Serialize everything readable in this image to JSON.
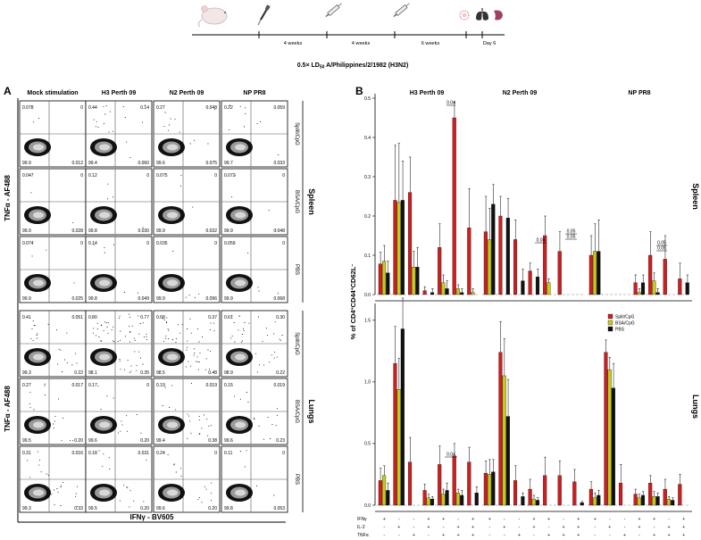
{
  "timeline": {
    "intervals": [
      "4 weeks",
      "4 weeks",
      "6 weeks"
    ],
    "end_label": "Day 6",
    "challenge_label": "0.5× LD50 A/Philippines/2/1982 (H3N2)",
    "challenge_parts": {
      "pre": "0.5× LD",
      "sub": "50",
      "post": " A/Philippines/2/1982 (H3N2)"
    }
  },
  "panel_a": {
    "letter": "A",
    "columns": [
      "Mock stimulation",
      "H3 Perth 09",
      "N2 Perth 09",
      "NP PR8"
    ],
    "tissues": [
      "Spleen",
      "Lungs"
    ],
    "groups": [
      "Split/CpG",
      "BSA/CpG",
      "PBS"
    ],
    "y_axis_label": "TNFα - AF488",
    "x_axis_label": "IFNγ - BV605",
    "quadrants": [
      [
        [
          "0.078",
          "0",
          "99.9",
          "0.012"
        ],
        [
          "0.44",
          "0.14",
          "99.4",
          "0.060"
        ],
        [
          "0.27",
          "0.048",
          "99.6",
          "0.075"
        ],
        [
          "0.22",
          "0.059",
          "99.7",
          "0.033"
        ]
      ],
      [
        [
          "0.047",
          "0",
          "99.9",
          "0.028"
        ],
        [
          "0.12",
          "0",
          "99.8",
          "0.030"
        ],
        [
          "0.075",
          "0",
          "99.9",
          "0.032"
        ],
        [
          "0.072",
          "0",
          "99.9",
          "0.048"
        ]
      ],
      [
        [
          "0.074",
          "0",
          "99.9",
          "0.025"
        ],
        [
          "0.14",
          "0",
          "99.8",
          "0.049"
        ],
        [
          "0.035",
          "0",
          "99.9",
          "0.096"
        ],
        [
          "0.059",
          "0",
          "99.9",
          "0.068"
        ]
      ],
      [
        [
          "0.41",
          "0.051",
          "99.3",
          "0.22"
        ],
        [
          "0.80",
          "0.77",
          "98.1",
          "0.35"
        ],
        [
          "0.68",
          "0.37",
          "98.5",
          "0.48"
        ],
        [
          "0.61",
          "0.30",
          "98.9",
          "0.22"
        ]
      ],
      [
        [
          "0.27",
          "0.017",
          "99.5",
          "0.20"
        ],
        [
          "0.17",
          "0",
          "99.6",
          "0.20"
        ],
        [
          "0.19",
          "0.019",
          "99.4",
          "0.38"
        ],
        [
          "0.15",
          "0.019",
          "99.6",
          "0.23"
        ]
      ],
      [
        [
          "0.31",
          "0.016",
          "99.3",
          "0.33"
        ],
        [
          "0.18",
          "0.031",
          "99.5",
          "0.20"
        ],
        [
          "0.24",
          "0",
          "99.6",
          "0.20"
        ],
        [
          "0.11",
          "0",
          "99.8",
          "0.053"
        ]
      ]
    ]
  },
  "panel_b": {
    "letter": "B",
    "y_axis_label": "% of CD4+CD44+CD62L−",
    "y_axis_parts": {
      "pre": "% of CD4",
      "s1": "+",
      "mid1": "CD44",
      "s2": "+",
      "mid2": "CD62L",
      "s3": "−"
    },
    "marker_labels": [
      "IFNγ",
      "IL-2",
      "TNFα"
    ],
    "marker_pattern": [
      [
        "+",
        "-",
        "-",
        "+",
        "+",
        "-",
        "+"
      ],
      [
        "-",
        "+",
        "-",
        "+",
        "-",
        "+",
        "+"
      ],
      [
        "-",
        "-",
        "+",
        "-",
        "+",
        "+",
        "+"
      ]
    ],
    "legend": [
      {
        "name": "Split/CpG",
        "color": "#cc1f1f"
      },
      {
        "name": "BSA/CpG",
        "color": "#c8c81e"
      },
      {
        "name": "PBS",
        "color": "#111111"
      }
    ],
    "stat_labels": {
      "spleen_h3": "0.04",
      "spleen_n2": "0.04",
      "spleen_n2_b": "0.05",
      "spleen_n2_c": "0.05",
      "spleen_np_a": "0.05",
      "spleen_np_b": "0.05",
      "lungs_h3": "0.04"
    }
  },
  "chart_data": [
    {
      "type": "bar",
      "tissue": "Spleen",
      "antigens": [
        "H3 Perth 09",
        "N2 Perth 09",
        "NP PR8"
      ],
      "categories": [
        "IFNγ+",
        "IL-2+",
        "TNFα+",
        "IFNγ+IL-2+",
        "IFNγ+TNFα+",
        "IL-2+TNFα+",
        "IFNγ+IL-2+TNFα+"
      ],
      "ylim": [
        0,
        0.5
      ],
      "yticks": [
        "0.0",
        "0.1",
        "0.2",
        "0.3",
        "0.4",
        "0.5"
      ],
      "series": [
        {
          "name": "Split/CpG",
          "values": [
            [
              0.078,
              0.24,
              0.26,
              0.01,
              0.12,
              0.45,
              0.17
            ],
            [
              0.16,
              0.2,
              0.14,
              0.06,
              0.15,
              0.11,
              0
            ],
            [
              0.1,
              0,
              0,
              0.03,
              0.1,
              0.09,
              0.04
            ]
          ]
        },
        {
          "name": "BSA/CpG",
          "values": [
            [
              0.085,
              0.235,
              0.07,
              0,
              0.03,
              0.015,
              0.005
            ],
            [
              0.14,
              0,
              0,
              0,
              0.03,
              0,
              0
            ],
            [
              0.11,
              0,
              0,
              0.005,
              0.035,
              0,
              0
            ]
          ]
        },
        {
          "name": "PBS",
          "values": [
            [
              0.055,
              0.24,
              0.07,
              0.005,
              0.015,
              0.005,
              0
            ],
            [
              0.23,
              0.195,
              0.035,
              0.045,
              0,
              0,
              0
            ],
            [
              0.11,
              0,
              0,
              0.03,
              0.005,
              0,
              0.03
            ]
          ]
        }
      ],
      "errors": [
        [
          [
            0.03,
            0.14,
            0.09,
            0.01,
            0.06,
            0.04,
            0.1
          ],
          [
            0.09,
            0.05,
            0.05,
            0.02,
            0.05,
            0.05,
            0
          ],
          [
            0.05,
            0,
            0,
            0.02,
            0.06,
            0.06,
            0.04
          ]
        ],
        [
          [
            0.04,
            0.15,
            0.04,
            0,
            0.02,
            0.01,
            0.01
          ],
          [
            0.08,
            0,
            0,
            0,
            0.01,
            0,
            0
          ],
          [
            0.07,
            0,
            0,
            0.01,
            0.02,
            0,
            0
          ]
        ],
        [
          [
            0.03,
            0.1,
            0.05,
            0.01,
            0.02,
            0.01,
            0
          ],
          [
            0.05,
            0.05,
            0.03,
            0.02,
            0,
            0,
            0
          ],
          [
            0.08,
            0,
            0,
            0.02,
            0.01,
            0,
            0.02
          ]
        ]
      ]
    },
    {
      "type": "bar",
      "tissue": "Lungs",
      "antigens": [
        "H3 Perth 09",
        "N2 Perth 09",
        "NP PR8"
      ],
      "categories": [
        "IFNγ+",
        "IL-2+",
        "TNFα+",
        "IFNγ+IL-2+",
        "IFNγ+TNFα+",
        "IL-2+TNFα+",
        "IFNγ+IL-2+TNFα+"
      ],
      "ylim": [
        0,
        1.6
      ],
      "yticks": [
        "0.0",
        "0.5",
        "1.0",
        "1.5"
      ],
      "series": [
        {
          "name": "Split/CpG",
          "values": [
            [
              0.2,
              1.15,
              0.35,
              0.12,
              0.33,
              0.4,
              0.35
            ],
            [
              0.26,
              1.24,
              0.2,
              0.13,
              0.24,
              0.24,
              0.19
            ],
            [
              0.13,
              1.24,
              0.18,
              0.09,
              0.18,
              0.13,
              0.17
            ]
          ]
        },
        {
          "name": "BSA/CpG",
          "values": [
            [
              0.24,
              0.94,
              0,
              0.06,
              0.09,
              0.1,
              0
            ],
            [
              0.25,
              1.05,
              0,
              0.05,
              0,
              0,
              0
            ],
            [
              0.06,
              1.1,
              0,
              0.06,
              0.07,
              0.05,
              0
            ]
          ]
        },
        {
          "name": "PBS",
          "values": [
            [
              0.12,
              1.43,
              0,
              0.05,
              0.12,
              0.08,
              0.1
            ],
            [
              0.27,
              0.72,
              0.07,
              0.04,
              0,
              0,
              0.02
            ],
            [
              0.08,
              0.95,
              0,
              0.08,
              0.07,
              0.04,
              0
            ]
          ]
        }
      ],
      "errors": [
        [
          [
            0.1,
            0.3,
            0.2,
            0.05,
            0.15,
            0.1,
            0.12
          ],
          [
            0.1,
            0.25,
            0.12,
            0.08,
            0.15,
            0.12,
            0.1
          ],
          [
            0.06,
            0.1,
            0.15,
            0.04,
            0.06,
            0.08,
            0.08
          ]
        ],
        [
          [
            0.08,
            0.25,
            0,
            0.03,
            0.04,
            0.03,
            0
          ],
          [
            0.12,
            0.3,
            0,
            0.03,
            0,
            0,
            0
          ],
          [
            0.04,
            0.1,
            0,
            0.03,
            0.04,
            0.02,
            0
          ]
        ],
        [
          [
            0.06,
            0.25,
            0,
            0.02,
            0.06,
            0.04,
            0.05
          ],
          [
            0.1,
            0.3,
            0.03,
            0.02,
            0,
            0,
            0.01
          ],
          [
            0.04,
            0.2,
            0,
            0.03,
            0.03,
            0.02,
            0
          ]
        ]
      ]
    }
  ]
}
